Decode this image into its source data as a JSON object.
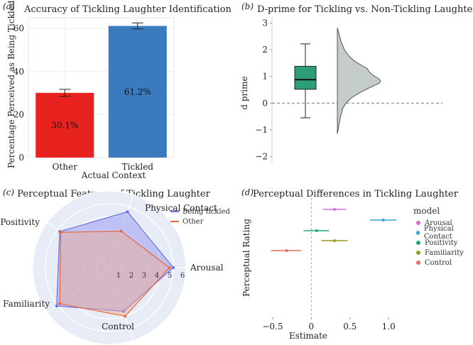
{
  "chart_data": [
    {
      "id": "a",
      "panel_label": "(a)",
      "type": "bar",
      "title": "Accuracy of Tickling Laughter Identification",
      "xlabel": "Actual Context",
      "ylabel": "Percentage Perceived as Being Tickled",
      "categories": [
        "Other",
        "Tickled"
      ],
      "values": [
        30.1,
        61.2
      ],
      "value_labels": [
        "30.1%",
        "61.2%"
      ],
      "errors": [
        1.6,
        1.4
      ],
      "colors": [
        "#e8221e",
        "#3a7bbf"
      ],
      "ylim": [
        0,
        65
      ],
      "yticks": [
        0,
        20,
        40,
        60
      ]
    },
    {
      "id": "b",
      "panel_label": "(b)",
      "type": "box-violin",
      "title": "D-prime for Tickling vs. Non-Tickling Laughter",
      "ylabel": "d prime",
      "ylim": [
        -2.2,
        3.2
      ],
      "yticks": [
        -2,
        -1,
        0,
        1,
        2,
        3
      ],
      "box": {
        "whisker_low": -0.55,
        "q1": 0.52,
        "median": 0.88,
        "q3": 1.38,
        "whisker_high": 2.22,
        "color": "#2e9e77"
      },
      "violin": {
        "min": -1.15,
        "max": 2.82,
        "color": "#c5cdc9",
        "density": [
          [
            -1.15,
            0.0
          ],
          [
            -0.8,
            0.03
          ],
          [
            -0.5,
            0.06
          ],
          [
            -0.2,
            0.1
          ],
          [
            0.0,
            0.16
          ],
          [
            0.2,
            0.26
          ],
          [
            0.4,
            0.42
          ],
          [
            0.6,
            0.62
          ],
          [
            0.75,
            0.78
          ],
          [
            0.85,
            0.8
          ],
          [
            0.95,
            0.74
          ],
          [
            1.05,
            0.66
          ],
          [
            1.15,
            0.6
          ],
          [
            1.3,
            0.55
          ],
          [
            1.45,
            0.42
          ],
          [
            1.6,
            0.3
          ],
          [
            1.8,
            0.2
          ],
          [
            2.0,
            0.13
          ],
          [
            2.3,
            0.07
          ],
          [
            2.6,
            0.03
          ],
          [
            2.82,
            0.0
          ]
        ]
      },
      "reference_line": 0
    },
    {
      "id": "c",
      "panel_label": "(c)",
      "type": "radar",
      "title": "Perceptual Features of Tickling Laughter",
      "axes": [
        "Arousal",
        "Physical Contact",
        "Positivity",
        "Familiarity",
        "Control"
      ],
      "rlim": [
        0,
        6
      ],
      "rticks": [
        1,
        2,
        3,
        4,
        5,
        6
      ],
      "series": [
        {
          "name": "Being tickled",
          "color": "#6a6ee8",
          "fill": "#8c8ff0",
          "values": [
            5.0,
            4.6,
            4.8,
            5.1,
            3.6
          ]
        },
        {
          "name": "Other",
          "color": "#e8683c",
          "fill": "#f0a88c",
          "values": [
            4.7,
            3.0,
            4.7,
            4.8,
            4.0
          ]
        }
      ]
    },
    {
      "id": "d",
      "panel_label": "(d)",
      "type": "dot-interval",
      "title": "Perceptual Differences in Tickling Laughter",
      "xlabel": "Estimate",
      "ylabel": "Perceptual Rating",
      "xlim": [
        -0.6,
        1.2
      ],
      "xticks": [
        -0.5,
        0.0,
        0.5,
        1.0
      ],
      "xtick_labels": [
        "−0.5",
        "0",
        "0.5",
        "1.0"
      ],
      "legend_title": "model",
      "series": [
        {
          "name": "Arousal",
          "color": "#d36ad8",
          "estimate": 0.3,
          "low": 0.15,
          "high": 0.45
        },
        {
          "name": "Physical Contact",
          "color": "#2ea6d8",
          "estimate": 0.93,
          "low": 0.76,
          "high": 1.1
        },
        {
          "name": "Positivity",
          "color": "#22a878",
          "estimate": 0.07,
          "low": -0.1,
          "high": 0.23
        },
        {
          "name": "Familiarity",
          "color": "#9a9a1a",
          "estimate": 0.3,
          "low": 0.13,
          "high": 0.47
        },
        {
          "name": "Control",
          "color": "#e86a60",
          "estimate": -0.32,
          "low": -0.52,
          "high": -0.13
        }
      ]
    }
  ]
}
